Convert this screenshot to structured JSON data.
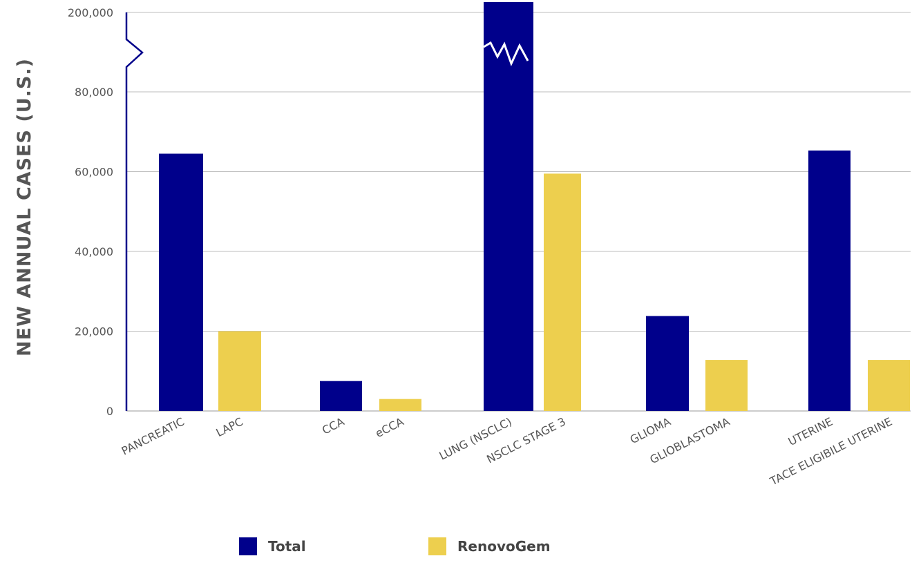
{
  "chart_data": {
    "type": "bar",
    "ylabel": "NEW ANNUAL CASES (U.S.)",
    "axis_break": {
      "lower_max": 85000,
      "upper_label": "200,000"
    },
    "yticks": [
      {
        "value": 0,
        "label": "0"
      },
      {
        "value": 20000,
        "label": "20,000"
      },
      {
        "value": 40000,
        "label": "40,000"
      },
      {
        "value": 60000,
        "label": "60,000"
      },
      {
        "value": 80000,
        "label": "80,000"
      },
      {
        "value": 200000,
        "label": "200,000"
      }
    ],
    "grid": true,
    "legend_position": "bottom",
    "series": [
      {
        "name": "Total",
        "color": "#00008B"
      },
      {
        "name": "RenovoGem",
        "color": "#EDCF4E"
      }
    ],
    "bars": [
      {
        "category": "PANCREATIC",
        "series": "Total",
        "value": 64500
      },
      {
        "category": "LAPC",
        "series": "RenovoGem",
        "value": 20000
      },
      {
        "category": "CCA",
        "series": "Total",
        "value": 7500
      },
      {
        "category": "eCCA",
        "series": "RenovoGem",
        "value": 3000
      },
      {
        "category": "LUNG (NSCLC)",
        "series": "Total",
        "value": 230000,
        "broken": true
      },
      {
        "category": "NSCLC STAGE 3",
        "series": "RenovoGem",
        "value": 59500
      },
      {
        "category": "GLIOMA",
        "series": "Total",
        "value": 23800
      },
      {
        "category": "GLIOBLASTOMA",
        "series": "RenovoGem",
        "value": 12800
      },
      {
        "category": "UTERINE",
        "series": "Total",
        "value": 65300
      },
      {
        "category": "TACE ELIGIBILE UTERINE",
        "series": "RenovoGem",
        "value": 12800
      }
    ]
  }
}
